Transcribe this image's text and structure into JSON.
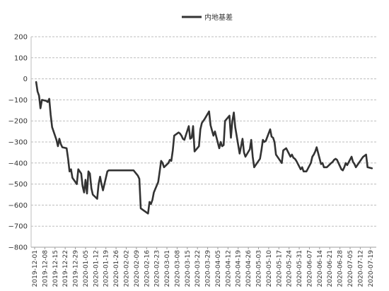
{
  "chart_data": {
    "type": "line",
    "title": "",
    "xlabel": "",
    "ylabel": "",
    "ylim": [
      -800,
      200
    ],
    "yticks": [
      200,
      100,
      0,
      -100,
      -200,
      -300,
      -400,
      -500,
      -600,
      -700,
      -800
    ],
    "grid": "horizontal dashed",
    "legend": "top-center",
    "x_ticks": [
      "2019-12-01",
      "2019-12-08",
      "2019-12-15",
      "2019-12-22",
      "2019-12-29",
      "2020-01-05",
      "2020-01-12",
      "2020-01-19",
      "2020-01-26",
      "2020-02-02",
      "2020-02-09",
      "2020-02-16",
      "2020-02-23",
      "2020-03-01",
      "2020-03-08",
      "2020-03-15",
      "2020-03-22",
      "2020-03-29",
      "2020-04-05",
      "2020-04-12",
      "2020-04-19",
      "2020-04-26",
      "2020-05-03",
      "2020-05-10",
      "2020-05-17",
      "2020-05-24",
      "2020-05-31",
      "2020-06-07",
      "2020-06-14",
      "2020-06-21",
      "2020-06-28",
      "2020-07-05",
      "2020-07-12",
      "2020-07-19"
    ],
    "series": [
      {
        "name": "内地基差",
        "color": "#333333",
        "points": [
          [
            "2019-12-02",
            -15
          ],
          [
            "2019-12-03",
            -60
          ],
          [
            "2019-12-04",
            -80
          ],
          [
            "2019-12-05",
            -140
          ],
          [
            "2019-12-06",
            -100
          ],
          [
            "2019-12-09",
            -105
          ],
          [
            "2019-12-10",
            -110
          ],
          [
            "2019-12-11",
            -95
          ],
          [
            "2019-12-12",
            -170
          ],
          [
            "2019-12-13",
            -230
          ],
          [
            "2019-12-16",
            -290
          ],
          [
            "2019-12-17",
            -320
          ],
          [
            "2019-12-18",
            -285
          ],
          [
            "2019-12-19",
            -310
          ],
          [
            "2019-12-20",
            -325
          ],
          [
            "2019-12-23",
            -330
          ],
          [
            "2019-12-24",
            -380
          ],
          [
            "2019-12-25",
            -440
          ],
          [
            "2019-12-26",
            -430
          ],
          [
            "2019-12-27",
            -470
          ],
          [
            "2019-12-30",
            -500
          ],
          [
            "2019-12-31",
            -430
          ],
          [
            "2020-01-02",
            -450
          ],
          [
            "2020-01-03",
            -510
          ],
          [
            "2020-01-04",
            -540
          ],
          [
            "2020-01-05",
            -480
          ],
          [
            "2020-01-06",
            -545
          ],
          [
            "2020-01-07",
            -440
          ],
          [
            "2020-01-08",
            -450
          ],
          [
            "2020-01-09",
            -520
          ],
          [
            "2020-01-10",
            -550
          ],
          [
            "2020-01-13",
            -570
          ],
          [
            "2020-01-14",
            -500
          ],
          [
            "2020-01-15",
            -465
          ],
          [
            "2020-01-16",
            -500
          ],
          [
            "2020-01-17",
            -530
          ],
          [
            "2020-01-20",
            -440
          ],
          [
            "2020-01-21",
            -435
          ],
          [
            "2020-02-07",
            -435
          ],
          [
            "2020-02-10",
            -460
          ],
          [
            "2020-02-11",
            -475
          ],
          [
            "2020-02-12",
            -615
          ],
          [
            "2020-02-14",
            -625
          ],
          [
            "2020-02-17",
            -640
          ],
          [
            "2020-02-18",
            -585
          ],
          [
            "2020-02-19",
            -595
          ],
          [
            "2020-02-20",
            -575
          ],
          [
            "2020-02-21",
            -540
          ],
          [
            "2020-02-24",
            -490
          ],
          [
            "2020-02-25",
            -440
          ],
          [
            "2020-02-26",
            -390
          ],
          [
            "2020-02-27",
            -400
          ],
          [
            "2020-02-28",
            -420
          ],
          [
            "2020-03-02",
            -400
          ],
          [
            "2020-03-03",
            -385
          ],
          [
            "2020-03-04",
            -390
          ],
          [
            "2020-03-05",
            -340
          ],
          [
            "2020-03-06",
            -270
          ],
          [
            "2020-03-09",
            -255
          ],
          [
            "2020-03-10",
            -260
          ],
          [
            "2020-03-11",
            -270
          ],
          [
            "2020-03-12",
            -285
          ],
          [
            "2020-03-13",
            -290
          ],
          [
            "2020-03-16",
            -225
          ],
          [
            "2020-03-17",
            -285
          ],
          [
            "2020-03-18",
            -280
          ],
          [
            "2020-03-19",
            -225
          ],
          [
            "2020-03-20",
            -345
          ],
          [
            "2020-03-23",
            -320
          ],
          [
            "2020-03-24",
            -240
          ],
          [
            "2020-03-25",
            -210
          ],
          [
            "2020-03-26",
            -200
          ],
          [
            "2020-03-27",
            -190
          ],
          [
            "2020-03-30",
            -155
          ],
          [
            "2020-03-31",
            -220
          ],
          [
            "2020-04-01",
            -245
          ],
          [
            "2020-04-02",
            -270
          ],
          [
            "2020-04-03",
            -250
          ],
          [
            "2020-04-06",
            -330
          ],
          [
            "2020-04-07",
            -300
          ],
          [
            "2020-04-08",
            -320
          ],
          [
            "2020-04-09",
            -315
          ],
          [
            "2020-04-10",
            -200
          ],
          [
            "2020-04-13",
            -175
          ],
          [
            "2020-04-14",
            -280
          ],
          [
            "2020-04-15",
            -200
          ],
          [
            "2020-04-16",
            -160
          ],
          [
            "2020-04-17",
            -230
          ],
          [
            "2020-04-20",
            -355
          ],
          [
            "2020-04-21",
            -320
          ],
          [
            "2020-04-22",
            -285
          ],
          [
            "2020-04-23",
            -350
          ],
          [
            "2020-04-24",
            -370
          ],
          [
            "2020-04-27",
            -335
          ],
          [
            "2020-04-28",
            -290
          ],
          [
            "2020-04-29",
            -370
          ],
          [
            "2020-04-30",
            -420
          ],
          [
            "2020-05-01",
            -410
          ],
          [
            "2020-05-04",
            -380
          ],
          [
            "2020-05-05",
            -340
          ],
          [
            "2020-05-06",
            -290
          ],
          [
            "2020-05-07",
            -300
          ],
          [
            "2020-05-08",
            -295
          ],
          [
            "2020-05-11",
            -240
          ],
          [
            "2020-05-12",
            -275
          ],
          [
            "2020-05-13",
            -280
          ],
          [
            "2020-05-14",
            -300
          ],
          [
            "2020-05-15",
            -360
          ],
          [
            "2020-05-18",
            -390
          ],
          [
            "2020-05-19",
            -400
          ],
          [
            "2020-05-20",
            -340
          ],
          [
            "2020-05-21",
            -335
          ],
          [
            "2020-05-22",
            -330
          ],
          [
            "2020-05-25",
            -370
          ],
          [
            "2020-05-26",
            -360
          ],
          [
            "2020-05-27",
            -375
          ],
          [
            "2020-05-28",
            -380
          ],
          [
            "2020-05-29",
            -390
          ],
          [
            "2020-06-01",
            -430
          ],
          [
            "2020-06-02",
            -420
          ],
          [
            "2020-06-03",
            -440
          ],
          [
            "2020-06-05",
            -440
          ],
          [
            "2020-06-08",
            -400
          ],
          [
            "2020-06-09",
            -370
          ],
          [
            "2020-06-10",
            -360
          ],
          [
            "2020-06-11",
            -345
          ],
          [
            "2020-06-12",
            -325
          ],
          [
            "2020-06-15",
            -405
          ],
          [
            "2020-06-16",
            -400
          ],
          [
            "2020-06-17",
            -420
          ],
          [
            "2020-06-19",
            -420
          ],
          [
            "2020-06-22",
            -400
          ],
          [
            "2020-06-23",
            -395
          ],
          [
            "2020-06-24",
            -385
          ],
          [
            "2020-06-25",
            -380
          ],
          [
            "2020-06-26",
            -385
          ],
          [
            "2020-06-29",
            -430
          ],
          [
            "2020-06-30",
            -435
          ],
          [
            "2020-07-01",
            -420
          ],
          [
            "2020-07-02",
            -400
          ],
          [
            "2020-07-03",
            -410
          ],
          [
            "2020-07-06",
            -370
          ],
          [
            "2020-07-07",
            -395
          ],
          [
            "2020-07-08",
            -405
          ],
          [
            "2020-07-09",
            -420
          ],
          [
            "2020-07-10",
            -410
          ],
          [
            "2020-07-13",
            -380
          ],
          [
            "2020-07-14",
            -370
          ],
          [
            "2020-07-15",
            -365
          ],
          [
            "2020-07-16",
            -360
          ],
          [
            "2020-07-17",
            -420
          ],
          [
            "2020-07-20",
            -425
          ]
        ]
      }
    ]
  }
}
